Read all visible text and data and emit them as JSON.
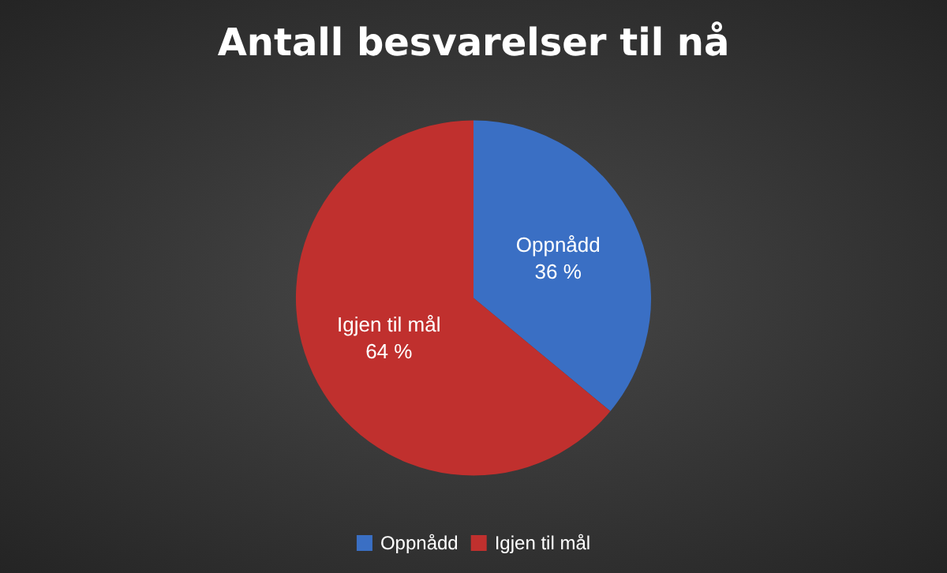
{
  "chart_data": {
    "type": "pie",
    "title": "Antall besvarelser til nå",
    "categories": [
      "Oppnådd",
      "Igjen til mål"
    ],
    "values": [
      36,
      64
    ],
    "colors": [
      "#3a6fc4",
      "#c0302e"
    ],
    "value_labels": [
      "36 %",
      "64 %"
    ],
    "legend": "bottom"
  }
}
